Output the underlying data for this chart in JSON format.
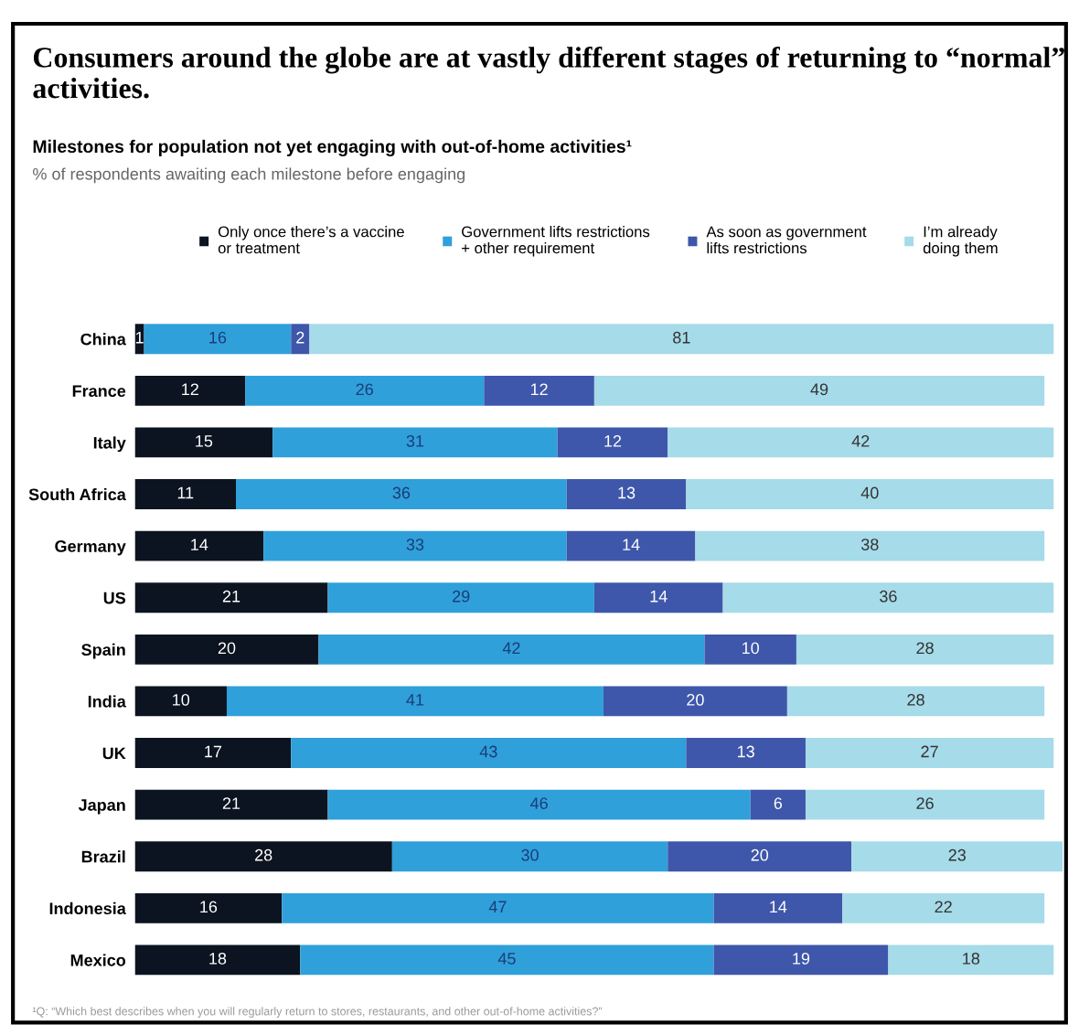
{
  "chart_data": {
    "type": "bar",
    "orientation": "horizontal",
    "stacked": true,
    "data_labels": true,
    "legend": "top",
    "grid": false,
    "title": "Consumers around the globe are at vastly different stages of returning to “normal” activities.",
    "subtitle": "Milestones for population not yet engaging with out-of-home activities¹",
    "annotations": [
      "% of respondents awaiting each milestone before engaging",
      "¹Q: “Which best describes when you will regularly return to stores, restaurants, and other out-of-home activities?”"
    ],
    "categories": [
      "China",
      "France",
      "Italy",
      "South Africa",
      "Germany",
      "US",
      "Spain",
      "India",
      "UK",
      "Japan",
      "Brazil",
      "Indonesia",
      "Mexico"
    ],
    "series": [
      {
        "name": "Only once there’s a vaccine\nor treatment",
        "color": "#0b1420",
        "values": [
          1,
          12,
          15,
          11,
          14,
          21,
          20,
          10,
          17,
          21,
          28,
          16,
          18
        ]
      },
      {
        "name": "Government lifts restrictions\n+ other requirement",
        "color": "#30a0da",
        "values": [
          16,
          26,
          31,
          36,
          33,
          29,
          42,
          41,
          43,
          46,
          30,
          47,
          45
        ]
      },
      {
        "name": "As soon as government\nlifts restrictions",
        "color": "#3e57aa",
        "values": [
          2,
          12,
          12,
          13,
          14,
          14,
          10,
          20,
          13,
          6,
          20,
          14,
          19
        ]
      },
      {
        "name": "I’m already\ndoing them",
        "color": "#a6dbe9",
        "values": [
          81,
          49,
          42,
          40,
          38,
          36,
          28,
          28,
          27,
          26,
          23,
          22,
          18
        ]
      }
    ]
  }
}
